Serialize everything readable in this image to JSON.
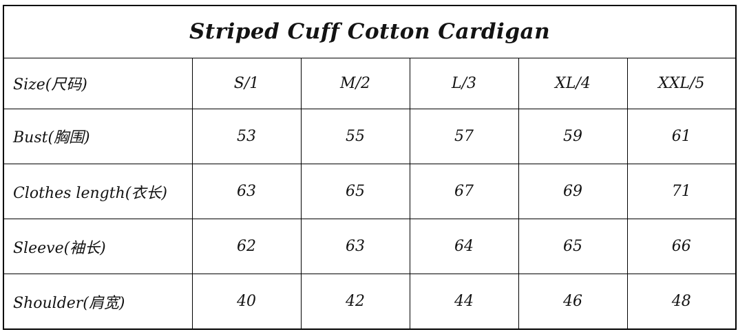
{
  "title": "Striped Cuff Cotton Cardigan",
  "chart_data": {
    "type": "table",
    "title": "Striped Cuff Cotton Cardigan",
    "row_header_label": "Size(尺码)",
    "columns": [
      "S/1",
      "M/2",
      "L/3",
      "XL/4",
      "XXL/5"
    ],
    "rows": [
      {
        "label": "Bust(胸围)",
        "values": [
          "53",
          "55",
          "57",
          "59",
          "61"
        ]
      },
      {
        "label": "Clothes length(衣长)",
        "values": [
          "63",
          "65",
          "67",
          "69",
          "71"
        ]
      },
      {
        "label": "Sleeve(袖长)",
        "values": [
          "62",
          "63",
          "64",
          "65",
          "66"
        ]
      },
      {
        "label": "Shoulder(肩宽)",
        "values": [
          "40",
          "42",
          "44",
          "46",
          "48"
        ]
      }
    ],
    "layout": {
      "grid": true,
      "border_color": "#000000",
      "background": "#ffffff",
      "text_color": "#131313",
      "font_style": "italic"
    }
  }
}
